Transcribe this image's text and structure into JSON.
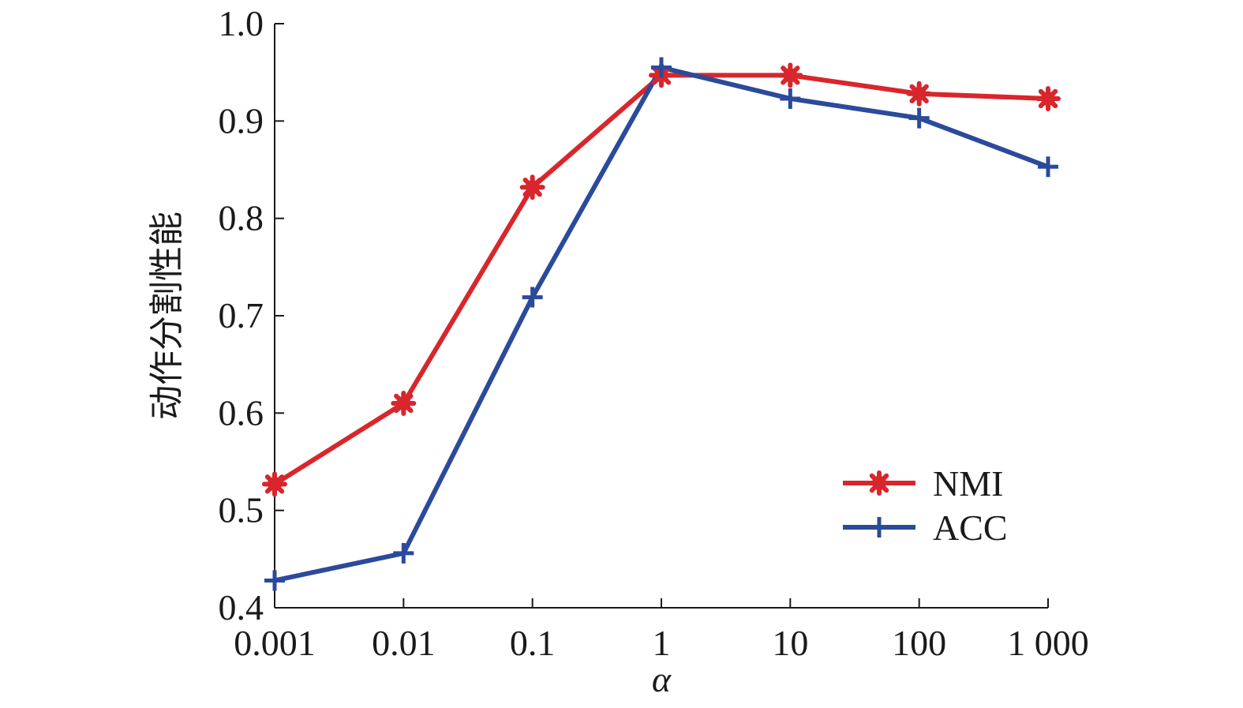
{
  "chart_data": {
    "type": "line",
    "title": "",
    "xlabel": "α",
    "ylabel": "动作分割性能",
    "x_scale": "categorical",
    "categories": [
      "0.001",
      "0.01",
      "0.1",
      "1",
      "10",
      "100",
      "1 000"
    ],
    "ylim": [
      0.4,
      1.0
    ],
    "yticks": [
      "0.4",
      "0.5",
      "0.6",
      "0.7",
      "0.8",
      "0.9",
      "1.0"
    ],
    "ytick_values": [
      0.4,
      0.5,
      0.6,
      0.7,
      0.8,
      0.9,
      1.0
    ],
    "grid": false,
    "legend_position": "bottom-right",
    "series": [
      {
        "name": "NMI",
        "color": "#d8262c",
        "marker": "asterisk",
        "values": [
          0.527,
          0.61,
          0.832,
          0.947,
          0.947,
          0.928,
          0.923
        ]
      },
      {
        "name": "ACC",
        "color": "#2b4a9b",
        "marker": "plus",
        "values": [
          0.428,
          0.456,
          0.719,
          0.955,
          0.923,
          0.903,
          0.853
        ]
      }
    ]
  }
}
